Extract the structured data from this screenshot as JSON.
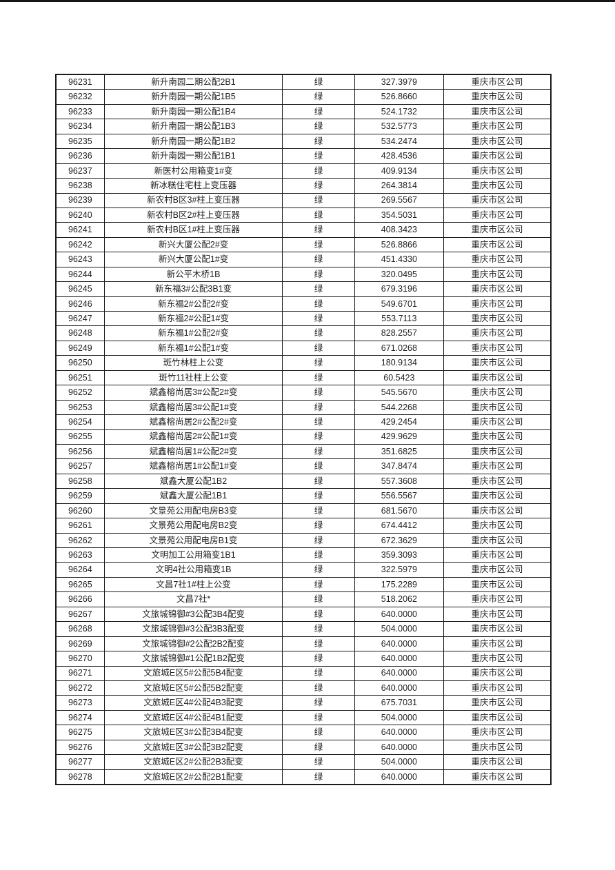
{
  "page": {
    "background_color": "#ffffff",
    "top_rule_color": "#161616",
    "border_color": "#1a1a1a",
    "text_color": "#1f1f1f"
  },
  "table": {
    "rows": [
      {
        "id": "96231",
        "name": "新升南园二期公配2B1",
        "status": "绿",
        "value": "327.3979",
        "company": "重庆市区公司"
      },
      {
        "id": "96232",
        "name": "新升南园一期公配1B5",
        "status": "绿",
        "value": "526.8660",
        "company": "重庆市区公司"
      },
      {
        "id": "96233",
        "name": "新升南园一期公配1B4",
        "status": "绿",
        "value": "524.1732",
        "company": "重庆市区公司"
      },
      {
        "id": "96234",
        "name": "新升南园一期公配1B3",
        "status": "绿",
        "value": "532.5773",
        "company": "重庆市区公司"
      },
      {
        "id": "96235",
        "name": "新升南园一期公配1B2",
        "status": "绿",
        "value": "534.2474",
        "company": "重庆市区公司"
      },
      {
        "id": "96236",
        "name": "新升南园一期公配1B1",
        "status": "绿",
        "value": "428.4536",
        "company": "重庆市区公司"
      },
      {
        "id": "96237",
        "name": "新医村公用箱变1#变",
        "status": "绿",
        "value": "409.9134",
        "company": "重庆市区公司"
      },
      {
        "id": "96238",
        "name": "新冰糕住宅柱上变压器",
        "status": "绿",
        "value": "264.3814",
        "company": "重庆市区公司"
      },
      {
        "id": "96239",
        "name": "新农村B区3#柱上变压器",
        "status": "绿",
        "value": "269.5567",
        "company": "重庆市区公司"
      },
      {
        "id": "96240",
        "name": "新农村B区2#柱上变压器",
        "status": "绿",
        "value": "354.5031",
        "company": "重庆市区公司"
      },
      {
        "id": "96241",
        "name": "新农村B区1#柱上变压器",
        "status": "绿",
        "value": "408.3423",
        "company": "重庆市区公司"
      },
      {
        "id": "96242",
        "name": "新兴大厦公配2#变",
        "status": "绿",
        "value": "526.8866",
        "company": "重庆市区公司"
      },
      {
        "id": "96243",
        "name": "新兴大厦公配1#变",
        "status": "绿",
        "value": "451.4330",
        "company": "重庆市区公司"
      },
      {
        "id": "96244",
        "name": "新公平木桥1B",
        "status": "绿",
        "value": "320.0495",
        "company": "重庆市区公司"
      },
      {
        "id": "96245",
        "name": "新东福3#公配3B1变",
        "status": "绿",
        "value": "679.3196",
        "company": "重庆市区公司"
      },
      {
        "id": "96246",
        "name": "新东福2#公配2#变",
        "status": "绿",
        "value": "549.6701",
        "company": "重庆市区公司"
      },
      {
        "id": "96247",
        "name": "新东福2#公配1#变",
        "status": "绿",
        "value": "553.7113",
        "company": "重庆市区公司"
      },
      {
        "id": "96248",
        "name": "新东福1#公配2#变",
        "status": "绿",
        "value": "828.2557",
        "company": "重庆市区公司"
      },
      {
        "id": "96249",
        "name": "新东福1#公配1#变",
        "status": "绿",
        "value": "671.0268",
        "company": "重庆市区公司"
      },
      {
        "id": "96250",
        "name": "斑竹林柱上公变",
        "status": "绿",
        "value": "180.9134",
        "company": "重庆市区公司"
      },
      {
        "id": "96251",
        "name": "斑竹11社柱上公变",
        "status": "绿",
        "value": "60.5423",
        "company": "重庆市区公司"
      },
      {
        "id": "96252",
        "name": "斌鑫榕尚居3#公配2#变",
        "status": "绿",
        "value": "545.5670",
        "company": "重庆市区公司"
      },
      {
        "id": "96253",
        "name": "斌鑫榕尚居3#公配1#变",
        "status": "绿",
        "value": "544.2268",
        "company": "重庆市区公司"
      },
      {
        "id": "96254",
        "name": "斌鑫榕尚居2#公配2#变",
        "status": "绿",
        "value": "429.2454",
        "company": "重庆市区公司"
      },
      {
        "id": "96255",
        "name": "斌鑫榕尚居2#公配1#变",
        "status": "绿",
        "value": "429.9629",
        "company": "重庆市区公司"
      },
      {
        "id": "96256",
        "name": "斌鑫榕尚居1#公配2#变",
        "status": "绿",
        "value": "351.6825",
        "company": "重庆市区公司"
      },
      {
        "id": "96257",
        "name": "斌鑫榕尚居1#公配1#变",
        "status": "绿",
        "value": "347.8474",
        "company": "重庆市区公司"
      },
      {
        "id": "96258",
        "name": "斌鑫大厦公配1B2",
        "status": "绿",
        "value": "557.3608",
        "company": "重庆市区公司"
      },
      {
        "id": "96259",
        "name": "斌鑫大厦公配1B1",
        "status": "绿",
        "value": "556.5567",
        "company": "重庆市区公司"
      },
      {
        "id": "96260",
        "name": "文景苑公用配电房B3变",
        "status": "绿",
        "value": "681.5670",
        "company": "重庆市区公司"
      },
      {
        "id": "96261",
        "name": "文景苑公用配电房B2变",
        "status": "绿",
        "value": "674.4412",
        "company": "重庆市区公司"
      },
      {
        "id": "96262",
        "name": "文景苑公用配电房B1变",
        "status": "绿",
        "value": "672.3629",
        "company": "重庆市区公司"
      },
      {
        "id": "96263",
        "name": "文明加工公用箱变1B1",
        "status": "绿",
        "value": "359.3093",
        "company": "重庆市区公司"
      },
      {
        "id": "96264",
        "name": "文明4社公用箱变1B",
        "status": "绿",
        "value": "322.5979",
        "company": "重庆市区公司"
      },
      {
        "id": "96265",
        "name": "文昌7社1#柱上公变",
        "status": "绿",
        "value": "175.2289",
        "company": "重庆市区公司"
      },
      {
        "id": "96266",
        "name": "文昌7社*",
        "status": "绿",
        "value": "518.2062",
        "company": "重庆市区公司"
      },
      {
        "id": "96267",
        "name": "文旅城锦御#3公配3B4配变",
        "status": "绿",
        "value": "640.0000",
        "company": "重庆市区公司"
      },
      {
        "id": "96268",
        "name": "文旅城锦御#3公配3B3配变",
        "status": "绿",
        "value": "504.0000",
        "company": "重庆市区公司"
      },
      {
        "id": "96269",
        "name": "文旅城锦御#2公配2B2配变",
        "status": "绿",
        "value": "640.0000",
        "company": "重庆市区公司"
      },
      {
        "id": "96270",
        "name": "文旅城锦御#1公配1B2配变",
        "status": "绿",
        "value": "640.0000",
        "company": "重庆市区公司"
      },
      {
        "id": "96271",
        "name": "文旅城E区5#公配5B4配变",
        "status": "绿",
        "value": "640.0000",
        "company": "重庆市区公司"
      },
      {
        "id": "96272",
        "name": "文旅城E区5#公配5B2配变",
        "status": "绿",
        "value": "640.0000",
        "company": "重庆市区公司"
      },
      {
        "id": "96273",
        "name": "文旅城E区4#公配4B3配变",
        "status": "绿",
        "value": "675.7031",
        "company": "重庆市区公司"
      },
      {
        "id": "96274",
        "name": "文旅城E区4#公配4B1配变",
        "status": "绿",
        "value": "504.0000",
        "company": "重庆市区公司"
      },
      {
        "id": "96275",
        "name": "文旅城E区3#公配3B4配变",
        "status": "绿",
        "value": "640.0000",
        "company": "重庆市区公司"
      },
      {
        "id": "96276",
        "name": "文旅城E区3#公配3B2配变",
        "status": "绿",
        "value": "640.0000",
        "company": "重庆市区公司"
      },
      {
        "id": "96277",
        "name": "文旅城E区2#公配2B3配变",
        "status": "绿",
        "value": "504.0000",
        "company": "重庆市区公司"
      },
      {
        "id": "96278",
        "name": "文旅城E区2#公配2B1配变",
        "status": "绿",
        "value": "640.0000",
        "company": "重庆市区公司"
      }
    ]
  }
}
